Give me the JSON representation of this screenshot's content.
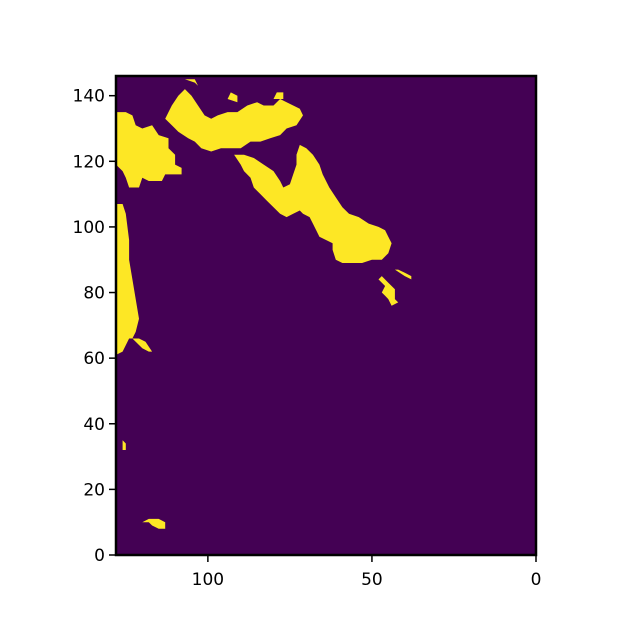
{
  "chart_data": {
    "type": "heatmap",
    "title": "",
    "xlabel": "",
    "ylabel": "",
    "xlim": [
      128,
      0
    ],
    "ylim": [
      0,
      146
    ],
    "x_ticks": [
      {
        "value": 100,
        "label": "100"
      },
      {
        "value": 50,
        "label": "50"
      },
      {
        "value": 0,
        "label": "0"
      }
    ],
    "y_ticks": [
      {
        "value": 0,
        "label": "0"
      },
      {
        "value": 20,
        "label": "20"
      },
      {
        "value": 40,
        "label": "40"
      },
      {
        "value": 60,
        "label": "60"
      },
      {
        "value": 80,
        "label": "80"
      },
      {
        "value": 100,
        "label": "100"
      },
      {
        "value": 120,
        "label": "120"
      },
      {
        "value": 140,
        "label": "140"
      }
    ],
    "grid": false,
    "colormap": "viridis",
    "background_value": 0,
    "foreground_value": 1,
    "colors": {
      "background": "#440154",
      "foreground": "#fde725",
      "axes": "#000000"
    },
    "regions": [
      {
        "name": "left-coast-strip",
        "polygon": [
          [
            128,
            107
          ],
          [
            126,
            107
          ],
          [
            125,
            104
          ],
          [
            124,
            96
          ],
          [
            124,
            90
          ],
          [
            123,
            84
          ],
          [
            122,
            78
          ],
          [
            121,
            72
          ],
          [
            122,
            68
          ],
          [
            123,
            66
          ],
          [
            121,
            64
          ],
          [
            120,
            63
          ],
          [
            118,
            62
          ],
          [
            117,
            62
          ],
          [
            119,
            65
          ],
          [
            121,
            66
          ],
          [
            124,
            66
          ],
          [
            126,
            62
          ],
          [
            128,
            61
          ]
        ]
      },
      {
        "name": "top-left-block",
        "polygon": [
          [
            128,
            135
          ],
          [
            125,
            135
          ],
          [
            123,
            134
          ],
          [
            122,
            131
          ],
          [
            120,
            130
          ],
          [
            117,
            131
          ],
          [
            115,
            128
          ],
          [
            112,
            127
          ],
          [
            112,
            124
          ],
          [
            110,
            122
          ],
          [
            110,
            119
          ],
          [
            108,
            118
          ],
          [
            108,
            116
          ],
          [
            113,
            116
          ],
          [
            114,
            114
          ],
          [
            118,
            114
          ],
          [
            120,
            115
          ],
          [
            121,
            112
          ],
          [
            124,
            112
          ],
          [
            125,
            115
          ],
          [
            126,
            117
          ],
          [
            127,
            118
          ],
          [
            128,
            119
          ]
        ]
      },
      {
        "name": "top-center-band",
        "polygon": [
          [
            113,
            133
          ],
          [
            111,
            137
          ],
          [
            109,
            140
          ],
          [
            107,
            142
          ],
          [
            105,
            140
          ],
          [
            103,
            137
          ],
          [
            101,
            134
          ],
          [
            99,
            133
          ],
          [
            97,
            134
          ],
          [
            94,
            135
          ],
          [
            91,
            135
          ],
          [
            88,
            137
          ],
          [
            85,
            138
          ],
          [
            83,
            137
          ],
          [
            80,
            137
          ],
          [
            78,
            139
          ],
          [
            76,
            138
          ],
          [
            74,
            137
          ],
          [
            72,
            136
          ],
          [
            71,
            134
          ],
          [
            73,
            131
          ],
          [
            76,
            130
          ],
          [
            78,
            128
          ],
          [
            81,
            127
          ],
          [
            84,
            126
          ],
          [
            87,
            126
          ],
          [
            90,
            124
          ],
          [
            93,
            124
          ],
          [
            96,
            124
          ],
          [
            99,
            123
          ],
          [
            102,
            124
          ],
          [
            104,
            126
          ],
          [
            106,
            127
          ],
          [
            109,
            129
          ],
          [
            111,
            131
          ]
        ]
      },
      {
        "name": "diagonal-island",
        "polygon": [
          [
            92,
            122
          ],
          [
            89,
            122
          ],
          [
            86,
            121
          ],
          [
            83,
            119
          ],
          [
            80,
            117
          ],
          [
            78,
            114
          ],
          [
            77,
            112
          ],
          [
            75,
            113
          ],
          [
            74,
            116
          ],
          [
            73,
            119
          ],
          [
            73,
            122
          ],
          [
            72,
            125
          ],
          [
            70,
            124
          ],
          [
            68,
            122
          ],
          [
            66,
            119
          ],
          [
            65,
            116
          ],
          [
            63,
            112
          ],
          [
            61,
            109
          ],
          [
            59,
            106
          ],
          [
            57,
            104
          ],
          [
            54,
            103
          ],
          [
            51,
            101
          ],
          [
            48,
            100
          ],
          [
            46,
            99
          ],
          [
            45,
            97
          ],
          [
            44,
            95
          ],
          [
            45,
            92
          ],
          [
            47,
            90
          ],
          [
            50,
            90
          ],
          [
            53,
            89
          ],
          [
            56,
            89
          ],
          [
            59,
            89
          ],
          [
            61,
            90
          ],
          [
            62,
            93
          ],
          [
            62,
            95
          ],
          [
            64,
            96
          ],
          [
            66,
            97
          ],
          [
            67,
            99
          ],
          [
            68,
            101
          ],
          [
            69,
            103
          ],
          [
            71,
            104
          ],
          [
            72,
            105
          ],
          [
            74,
            104
          ],
          [
            76,
            103
          ],
          [
            78,
            104
          ],
          [
            80,
            106
          ],
          [
            82,
            108
          ],
          [
            84,
            110
          ],
          [
            86,
            112
          ],
          [
            87,
            115
          ],
          [
            89,
            117
          ],
          [
            90,
            119
          ]
        ]
      },
      {
        "name": "small-east-island",
        "polygon": [
          [
            47,
            85
          ],
          [
            45,
            83
          ],
          [
            43,
            81
          ],
          [
            43,
            78
          ],
          [
            42,
            77
          ],
          [
            44,
            76
          ],
          [
            45,
            78
          ],
          [
            46,
            79
          ],
          [
            47,
            80
          ],
          [
            46,
            82
          ],
          [
            48,
            84
          ]
        ]
      },
      {
        "name": "tiny-east-islet",
        "polygon": [
          [
            43,
            87
          ],
          [
            40,
            85
          ],
          [
            38,
            84
          ],
          [
            38,
            85
          ],
          [
            40,
            86
          ],
          [
            42,
            87
          ]
        ]
      },
      {
        "name": "north-dot-a",
        "polygon": [
          [
            107,
            145
          ],
          [
            104,
            144
          ],
          [
            103,
            143
          ],
          [
            104,
            145
          ]
        ]
      },
      {
        "name": "north-dot-b",
        "polygon": [
          [
            94,
            139
          ],
          [
            91,
            138
          ],
          [
            91,
            140
          ],
          [
            93,
            141
          ]
        ]
      },
      {
        "name": "northeast-dot",
        "polygon": [
          [
            80,
            139
          ],
          [
            77,
            139
          ],
          [
            77,
            141
          ],
          [
            79,
            141
          ]
        ]
      },
      {
        "name": "small-south-dot",
        "polygon": [
          [
            126,
            35
          ],
          [
            125,
            34
          ],
          [
            125,
            32
          ],
          [
            126,
            32
          ]
        ]
      },
      {
        "name": "small-bottom-blob",
        "polygon": [
          [
            120,
            10
          ],
          [
            118,
            10
          ],
          [
            117,
            9
          ],
          [
            115,
            8
          ],
          [
            113,
            8
          ],
          [
            113,
            10
          ],
          [
            115,
            11
          ],
          [
            118,
            11
          ]
        ]
      }
    ]
  }
}
